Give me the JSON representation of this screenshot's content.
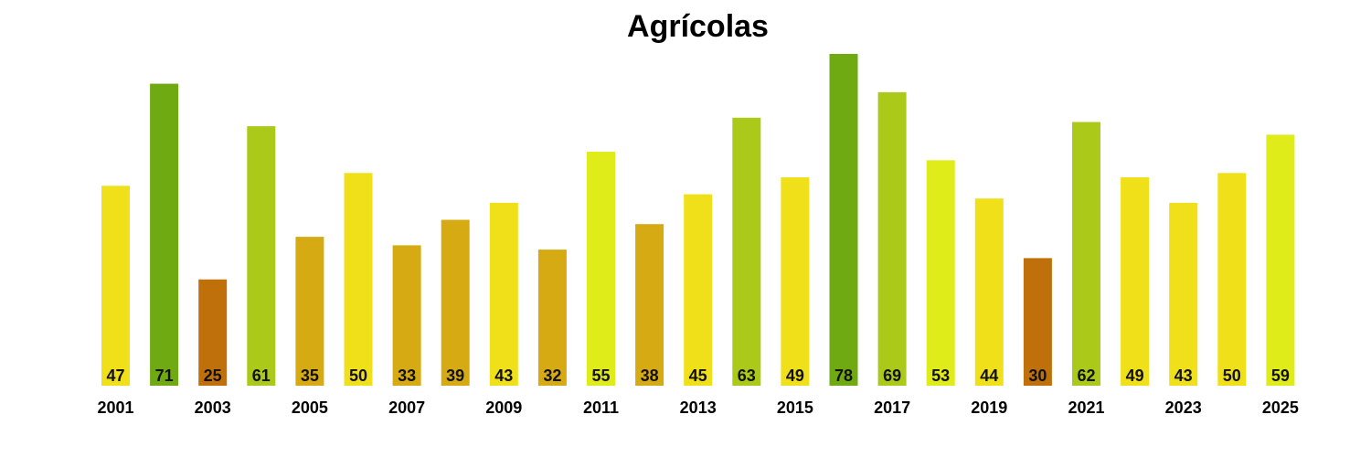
{
  "chart_data": {
    "type": "bar",
    "title": "Agrícolas",
    "xlabel": "",
    "ylabel": "",
    "categories": [
      "2001",
      "2002",
      "2003",
      "2004",
      "2005",
      "2006",
      "2007",
      "2008",
      "2009",
      "2010",
      "2011",
      "2012",
      "2013",
      "2014",
      "2015",
      "2016",
      "2017",
      "2018",
      "2019",
      "2020",
      "2021",
      "2022",
      "2023",
      "2024",
      "2025"
    ],
    "values": [
      47,
      71,
      25,
      61,
      35,
      50,
      33,
      39,
      43,
      32,
      55,
      38,
      45,
      63,
      49,
      78,
      69,
      53,
      44,
      30,
      62,
      49,
      43,
      50,
      59
    ],
    "bar_colors": [
      "#f0e01a",
      "#6faa12",
      "#c0700a",
      "#aac918",
      "#d6aa12",
      "#f0e01a",
      "#d6aa12",
      "#d6aa12",
      "#f0e01a",
      "#d6aa12",
      "#e0ec1a",
      "#d6aa12",
      "#f0e01a",
      "#aac918",
      "#f0e01a",
      "#6faa12",
      "#aac918",
      "#e0ec1a",
      "#f0e01a",
      "#c0700a",
      "#aac918",
      "#f0e01a",
      "#f0e01a",
      "#f0e01a",
      "#e0ec1a"
    ],
    "ylim": [
      0,
      78
    ],
    "grid": false,
    "legend": "none",
    "tick_labels_shown": [
      "2001",
      "2003",
      "2005",
      "2007",
      "2009",
      "2011",
      "2013",
      "2015",
      "2017",
      "2019",
      "2021",
      "2023",
      "2025"
    ],
    "data_labels": true
  }
}
